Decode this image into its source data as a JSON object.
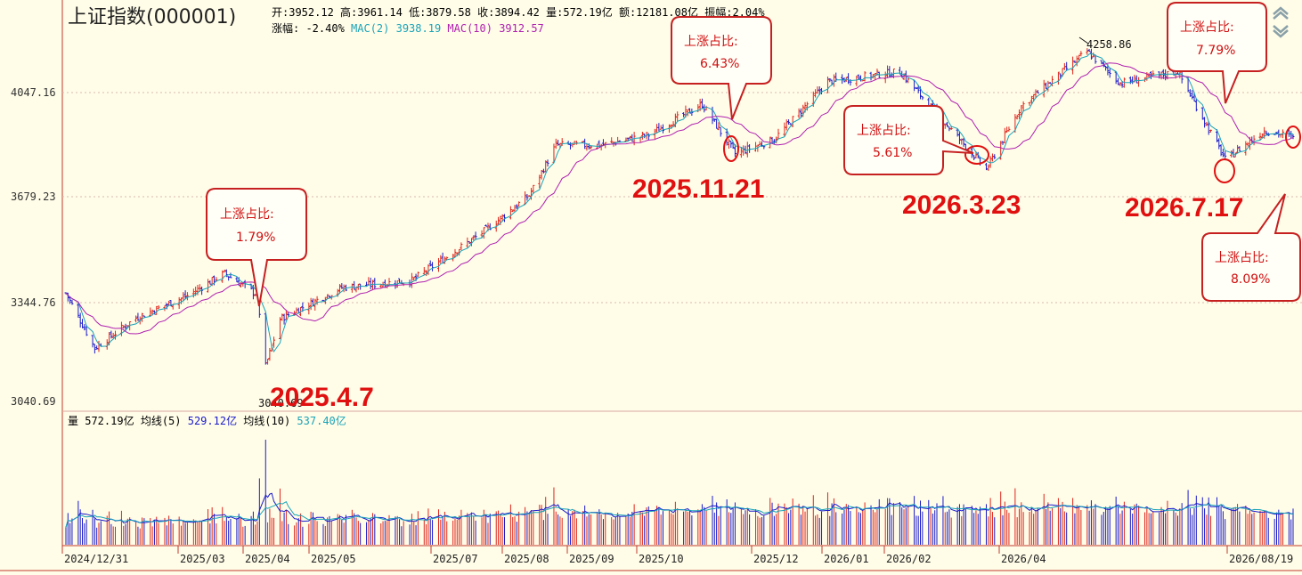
{
  "header": {
    "title": "上证指数(000001)",
    "line1": [
      {
        "label": "开:",
        "value": "3952.12",
        "color": "#000000"
      },
      {
        "label": "高:",
        "value": "3961.14",
        "color": "#000000"
      },
      {
        "label": "低:",
        "value": "3879.58",
        "color": "#000000"
      },
      {
        "label": "收:",
        "value": "3894.42",
        "color": "#000000"
      },
      {
        "label": "量:",
        "value": "572.19亿",
        "color": "#000000"
      },
      {
        "label": "额:",
        "value": "12181.08亿",
        "color": "#000000"
      },
      {
        "label": "振幅:",
        "value": "2.04%",
        "color": "#000000"
      }
    ],
    "line2": [
      {
        "label": "涨幅:",
        "value": "-2.40%",
        "color": "#000000"
      },
      {
        "label": "MAC(2)",
        "value": "3938.19",
        "color": "#1aa3b8"
      },
      {
        "label": "MAC(10)",
        "value": "3912.57",
        "color": "#b020b0"
      }
    ]
  },
  "price_axis": {
    "ticks": [
      "4047.16",
      "3679.23",
      "3344.76",
      "3040.69"
    ]
  },
  "price_annotations": {
    "high": "4258.86",
    "low": "3040.69"
  },
  "volume_header": {
    "label": "量",
    "value": "572.19亿",
    "ma5_label": "均线(5)",
    "ma5_value": "529.12亿",
    "ma10_label": "均线(10)",
    "ma10_value": "537.40亿"
  },
  "date_axis": {
    "labels": [
      "2024/12/31",
      "2025/03",
      "2025/04",
      "2025/05",
      "2025/07",
      "2025/08",
      "2025/09",
      "2025/10",
      "2025/12",
      "2026/01",
      "2026/02",
      "2026/04",
      "2026/08/19"
    ]
  },
  "big_dates": [
    "2025.4.7",
    "2025.11.21",
    "2026.3.23",
    "2026.7.17"
  ],
  "callouts": [
    {
      "label": "上涨占比:",
      "value": "1.79%"
    },
    {
      "label": "上涨占比:",
      "value": "6.43%"
    },
    {
      "label": "上涨占比:",
      "value": "5.61%"
    },
    {
      "label": "上涨占比:",
      "value": "7.79%"
    },
    {
      "label": "上涨占比:",
      "value": "8.09%"
    }
  ],
  "toolbar": {
    "up_icon": "double-chevron-up-icon",
    "down_icon": "double-chevron-down-icon"
  },
  "colors": {
    "background": "#fffde8",
    "up": "#e0241c",
    "down": "#1a1acc",
    "ma_short": "#1aa3b8",
    "ma_long": "#b020b0",
    "annotation_red": "#e01010"
  },
  "chart_data": {
    "type": "candlestick",
    "series": [
      {
        "name": "MAC(2)",
        "last": 3938.19
      },
      {
        "name": "MAC(10)",
        "last": 3912.57
      }
    ],
    "price_ticks": [
      4047.16,
      3679.23,
      3344.76,
      3040.69
    ],
    "period_high": 4258.86,
    "period_low": 3040.69,
    "anchor_points": [
      {
        "date": "2024/12/31",
        "close": 3351
      },
      {
        "date": "2025/01/14",
        "close": 3160
      },
      {
        "date": "2025/02/03",
        "close": 3265
      },
      {
        "date": "2025/02/28",
        "close": 3342
      },
      {
        "date": "2025/03/18",
        "close": 3420
      },
      {
        "date": "2025/04/03",
        "close": 3345
      },
      {
        "date": "2025/04/07",
        "close": 3096
      },
      {
        "date": "2025/04/14",
        "close": 3262
      },
      {
        "date": "2025/05/14",
        "close": 3370
      },
      {
        "date": "2025/06/17",
        "close": 3395
      },
      {
        "date": "2025/07/21",
        "close": 3560
      },
      {
        "date": "2025/08/13",
        "close": 3690
      },
      {
        "date": "2025/08/26",
        "close": 3865
      },
      {
        "date": "2025/09/17",
        "close": 3865
      },
      {
        "date": "2025/10/10",
        "close": 3900
      },
      {
        "date": "2025/11/05",
        "close": 4007
      },
      {
        "date": "2025/11/21",
        "close": 3835
      },
      {
        "date": "2025/12/10",
        "close": 3885
      },
      {
        "date": "2026/01/05",
        "close": 4085
      },
      {
        "date": "2026/02/09",
        "close": 4120
      },
      {
        "date": "2026/03/23",
        "close": 3780
      },
      {
        "date": "2026/04/09",
        "close": 4000
      },
      {
        "date": "2026/05/11",
        "close": 4190
      },
      {
        "date": "2026/05/27",
        "close": 4080
      },
      {
        "date": "2026/06/24",
        "close": 4120
      },
      {
        "date": "2026/07/17",
        "close": 3815
      },
      {
        "date": "2026/08/05",
        "close": 3915
      },
      {
        "date": "2026/08/19",
        "close": 3894.42
      }
    ]
  }
}
